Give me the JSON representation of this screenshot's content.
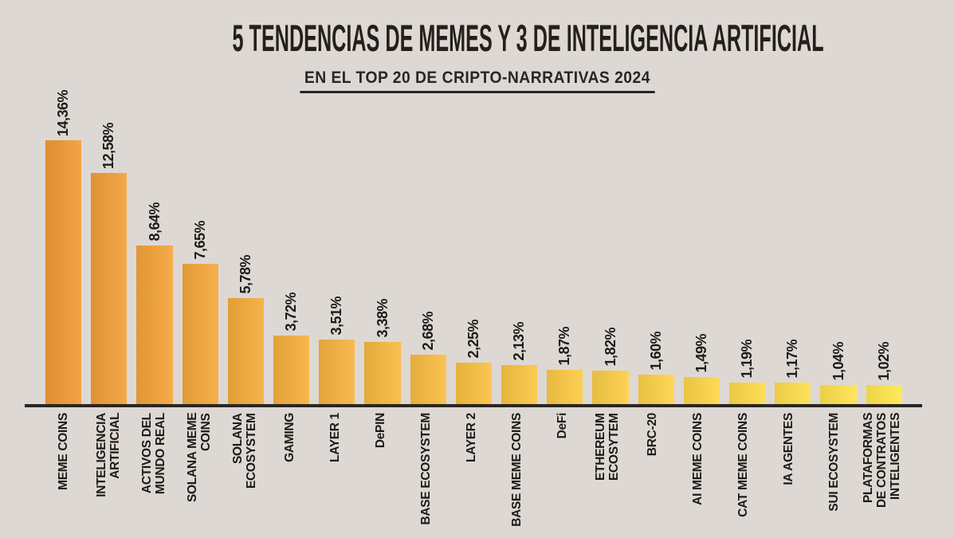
{
  "page": {
    "background_color": "#DED8D4",
    "text_color": "#241F1B"
  },
  "header": {
    "title": "5 TENDENCIAS DE MEMES Y 3 DE INTELIGENCIA ARTIFICIAL",
    "subtitle": "EN EL TOP 20 DE CRIPTO-NARRATIVAS 2024"
  },
  "chart_data": {
    "type": "bar",
    "orientation": "vertical",
    "title": "5 TENDENCIAS DE MEMES Y 3 DE INTELIGENCIA ARTIFICIAL",
    "subtitle": "EN EL TOP 20 DE CRIPTO-NARRATIVAS 2024",
    "unit": "%",
    "decimal_separator": "comma",
    "grid": false,
    "legend": null,
    "ylim": [
      0,
      14.36
    ],
    "value_labels_rotated": true,
    "category_labels_rotated": true,
    "categories": [
      "MEME COINS",
      "INTELIGENCIA ARTIFICIAL",
      "ACTIVOS DEL MUNDO REAL",
      "SOLANA MEME COINS",
      "SOLANA ECOSYSTEM",
      "GAMING",
      "LAYER 1",
      "DePIN",
      "BASE ECOSYSTEM",
      "LAYER 2",
      "BASE MEME COINS",
      "DeFi",
      "ETHEREUM ECOSYTEM",
      "BRC-20",
      "AI MEME COINS",
      "CAT MEME COINS",
      "IA AGENTES",
      "SUI ECOSYSTEM",
      "PLATAFORMAS DE CONTRATOS INTELIGENTES"
    ],
    "category_display": [
      "MEME COINS",
      "INTELIGENCIA\nARTIFICIAL",
      "ACTIVOS DEL\nMUNDO REAL",
      "SOLANA MEME COINS",
      "SOLANA ECOSYSTEM",
      "GAMING",
      "LAYER 1",
      "DePIN",
      "BASE ECOSYSTEM",
      "LAYER 2",
      "BASE MEME COINS",
      "DeFi",
      "ETHEREUM ECOSYTEM",
      "BRC-20",
      "AI MEME COINS",
      "CAT MEME COINS",
      "IA AGENTES",
      "SUI ECOSYSTEM",
      "PLATAFORMAS\nDE CONTRATOS\nINTELIGENTES"
    ],
    "values": [
      14.36,
      12.58,
      8.64,
      7.65,
      5.78,
      3.72,
      3.51,
      3.38,
      2.68,
      2.25,
      2.13,
      1.87,
      1.82,
      1.6,
      1.49,
      1.19,
      1.17,
      1.04,
      1.02
    ],
    "value_labels": [
      "14,36%",
      "12,58%",
      "8,64%",
      "7,65%",
      "5,78%",
      "3,72%",
      "3,51%",
      "3,38%",
      "2,68%",
      "2,25%",
      "2,13%",
      "1,87%",
      "1,82%",
      "1,60%",
      "1,49%",
      "1,19%",
      "1,17%",
      "1,04%",
      "1,02%"
    ],
    "colors": {
      "bar_first": "#E8983C",
      "bar_last": "#F6DE52",
      "axis_line": "#2A2623"
    },
    "pixels_per_unit": 23.05
  }
}
